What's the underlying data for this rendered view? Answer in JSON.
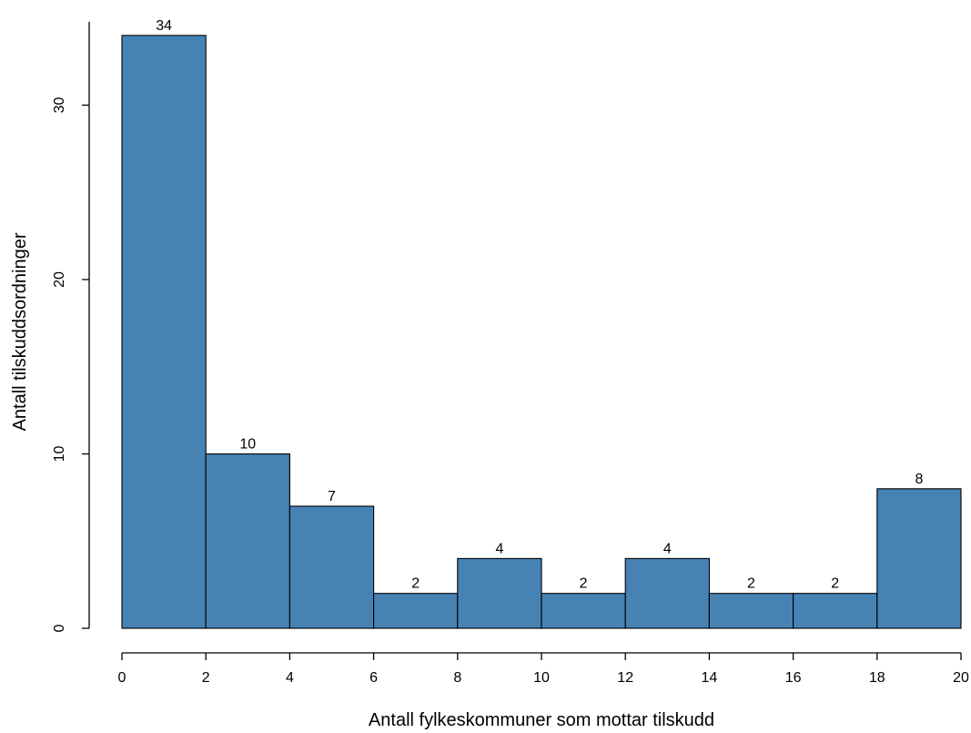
{
  "chart_data": {
    "type": "bar",
    "subtype": "histogram",
    "bins": [
      {
        "from": 0,
        "to": 2,
        "count": 34
      },
      {
        "from": 2,
        "to": 4,
        "count": 10
      },
      {
        "from": 4,
        "to": 6,
        "count": 7
      },
      {
        "from": 6,
        "to": 8,
        "count": 2
      },
      {
        "from": 8,
        "to": 10,
        "count": 4
      },
      {
        "from": 10,
        "to": 12,
        "count": 2
      },
      {
        "from": 12,
        "to": 14,
        "count": 4
      },
      {
        "from": 14,
        "to": 16,
        "count": 2
      },
      {
        "from": 16,
        "to": 18,
        "count": 2
      },
      {
        "from": 18,
        "to": 20,
        "count": 8
      }
    ],
    "bar_labels": [
      "34",
      "10",
      "7",
      "2",
      "4",
      "2",
      "4",
      "2",
      "2",
      "8"
    ],
    "xlabel": "Antall fylkeskommuner som mottar tilskudd",
    "ylabel": "Antall tilskuddsordninger",
    "xlim": [
      0,
      20
    ],
    "ylim": [
      0,
      34
    ],
    "x_ticks": [
      "0",
      "2",
      "4",
      "6",
      "8",
      "10",
      "12",
      "14",
      "16",
      "18",
      "20"
    ],
    "y_ticks": [
      "0",
      "10",
      "20",
      "30"
    ],
    "bar_color": "#4682b4",
    "grid": false,
    "legend": "none"
  }
}
